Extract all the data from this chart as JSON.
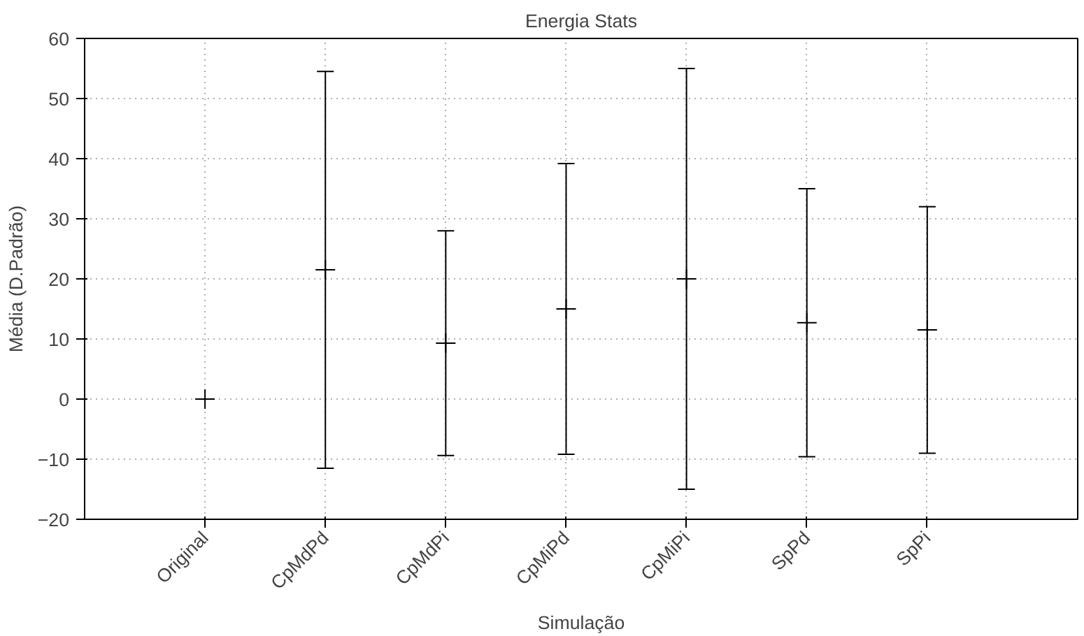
{
  "chart_data": {
    "type": "scatter",
    "title": "Energia Stats",
    "xlabel": "Simulação",
    "ylabel": "Média (D.Padrão)",
    "categories": [
      "Original",
      "CpMdPd",
      "CpMdPi",
      "CpMiPd",
      "CpMiPi",
      "SpPd",
      "SpPi"
    ],
    "values": [
      0,
      21.5,
      9.3,
      15,
      20,
      12.7,
      11.5
    ],
    "errors": [
      null,
      33,
      18.7,
      24.2,
      35,
      22.3,
      20.5
    ],
    "color": "#000000",
    "marker": "cross",
    "ylim": [
      -20,
      60
    ],
    "yticks": [
      -20,
      -10,
      0,
      10,
      20,
      30,
      40,
      50,
      60
    ],
    "grid": true
  }
}
